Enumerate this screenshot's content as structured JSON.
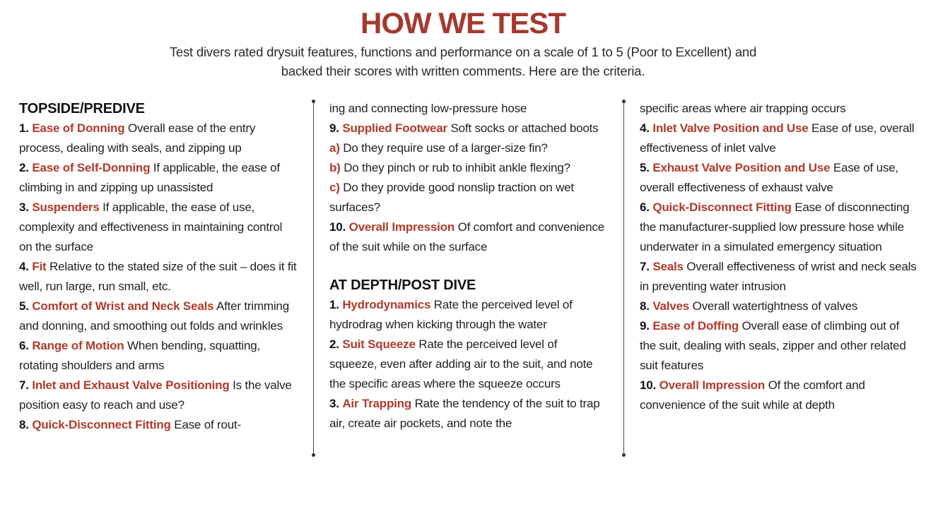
{
  "header": {
    "title": "HOW WE TEST",
    "subtitle": "Test divers rated drysuit features, functions and performance on a scale of 1 to 5 (Poor to Excellent) and backed their scores with written comments. Here are the criteria."
  },
  "colors": {
    "title_red": "#A43A2F",
    "keyword_red": "#B13A2B",
    "body_text": "#231F20"
  },
  "columns": [
    {
      "blocks": [
        {
          "type": "heading",
          "text": "TOPSIDE/PREDIVE"
        },
        {
          "type": "item",
          "num": "1.",
          "kw": "Ease of Donning",
          "text": "Overall ease of the entry process, dealing with seals, and zipping up"
        },
        {
          "type": "item",
          "num": "2.",
          "kw": "Ease of Self-Donning",
          "text": "If applicable, the ease of climbing in and zipping up unassisted"
        },
        {
          "type": "item",
          "num": "3.",
          "kw": "Suspenders",
          "text": "If applicable, the ease of use, complexity and effectiveness in maintaining control on the surface"
        },
        {
          "type": "item",
          "num": "4.",
          "kw": "Fit",
          "text": "Relative to the stated size of the suit – does it fit well, run large, run small, etc."
        },
        {
          "type": "item",
          "num": "5.",
          "kw": "Comfort of Wrist and Neck Seals",
          "text": "After trimming and donning, and smoothing out folds and wrinkles"
        },
        {
          "type": "item",
          "num": "6.",
          "kw": "Range of Motion",
          "text": "When bending, squatting, rotating shoulders and arms"
        },
        {
          "type": "item",
          "num": "7.",
          "kw": "Inlet and Exhaust Valve Positioning",
          "text": "Is the valve position easy to reach and use?"
        },
        {
          "type": "item",
          "num": "8.",
          "kw": "Quick-Disconnect Fitting",
          "text": "Ease of rout-"
        }
      ]
    },
    {
      "blocks": [
        {
          "type": "continuation",
          "text": "ing and connecting low-pressure hose"
        },
        {
          "type": "item",
          "num": "9.",
          "kw": "Supplied Footwear",
          "text": "Soft socks or attached boots"
        },
        {
          "type": "letter",
          "num": "a)",
          "text": "Do they require use of a larger-size fin?"
        },
        {
          "type": "letter",
          "num": "b)",
          "text": "Do they pinch or rub to inhibit ankle flexing?"
        },
        {
          "type": "letter",
          "num": "c)",
          "text": "Do they provide good nonslip traction on wet surfaces?"
        },
        {
          "type": "item",
          "num": "10.",
          "kw": "Overall Impression",
          "text": "Of comfort and convenience of the suit while on the surface"
        },
        {
          "type": "heading",
          "text": "AT DEPTH/POST DIVE"
        },
        {
          "type": "item",
          "num": "1.",
          "kw": "Hydrodynamics",
          "text": "Rate the perceived level of hydrodrag when kicking through the water"
        },
        {
          "type": "item",
          "num": "2.",
          "kw": "Suit Squeeze",
          "text": "Rate the perceived level of squeeze, even after adding air to the suit, and note the specific areas where the squeeze occurs"
        },
        {
          "type": "item",
          "num": "3.",
          "kw": "Air Trapping",
          "text": "Rate the tendency of the suit to trap air, create air pockets, and note the"
        }
      ]
    },
    {
      "blocks": [
        {
          "type": "continuation",
          "text": "specific areas where air trapping occurs"
        },
        {
          "type": "item",
          "num": "4.",
          "kw": "Inlet Valve Position and Use",
          "text": "Ease of use, overall effectiveness of inlet valve"
        },
        {
          "type": "item",
          "num": "5.",
          "kw": "Exhaust Valve Position and Use",
          "text": "Ease of use, overall effectiveness of exhaust valve"
        },
        {
          "type": "item",
          "num": "6.",
          "kw": "Quick-Disconnect Fitting",
          "text": "Ease of disconnecting the manufacturer-supplied low pressure hose while underwater in a simulated emergency situation"
        },
        {
          "type": "item",
          "num": "7.",
          "kw": "Seals",
          "text": "Overall effectiveness of wrist and neck seals in preventing water intrusion"
        },
        {
          "type": "item",
          "num": "8.",
          "kw": "Valves",
          "text": "Overall watertightness of valves"
        },
        {
          "type": "item",
          "num": "9.",
          "kw": "Ease of Doffing",
          "text": "Overall ease of climbing out of the suit, dealing with seals, zipper and other related suit features"
        },
        {
          "type": "item",
          "num": "10.",
          "kw": "Overall Impression",
          "text": "Of the comfort and convenience of the suit while at depth"
        }
      ]
    }
  ]
}
